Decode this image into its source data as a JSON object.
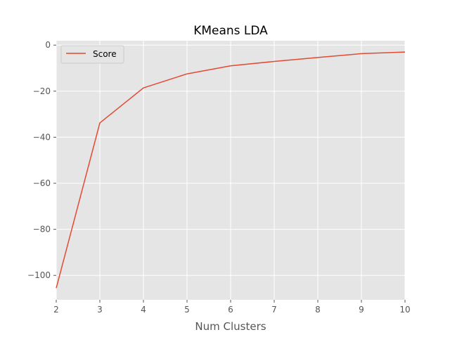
{
  "chart_data": {
    "type": "line",
    "title": "KMeans LDA",
    "xlabel": "Num Clusters",
    "ylabel": "",
    "x": [
      2,
      3,
      4,
      5,
      6,
      7,
      8,
      9,
      10
    ],
    "series": [
      {
        "name": "Score",
        "values": [
          -105.5,
          -33.8,
          -18.6,
          -12.5,
          -9.0,
          -7.1,
          -5.4,
          -3.7,
          -3.0
        ]
      }
    ],
    "xlim": [
      2,
      10
    ],
    "ylim": [
      -110.6,
      1.9
    ],
    "xticks": [
      "2",
      "3",
      "4",
      "5",
      "6",
      "7",
      "8",
      "9",
      "10"
    ],
    "xtick_values": [
      2,
      3,
      4,
      5,
      6,
      7,
      8,
      9,
      10
    ],
    "yticks": [
      "−100",
      "−80",
      "−60",
      "−40",
      "−20",
      "0"
    ],
    "ytick_values": [
      -100,
      -80,
      -60,
      -40,
      -20,
      0
    ],
    "grid": true,
    "legend_position": "top-left",
    "colors": {
      "series": "#E24A33",
      "plot_background": "#E5E5E5",
      "grid": "#FFFFFF"
    }
  }
}
